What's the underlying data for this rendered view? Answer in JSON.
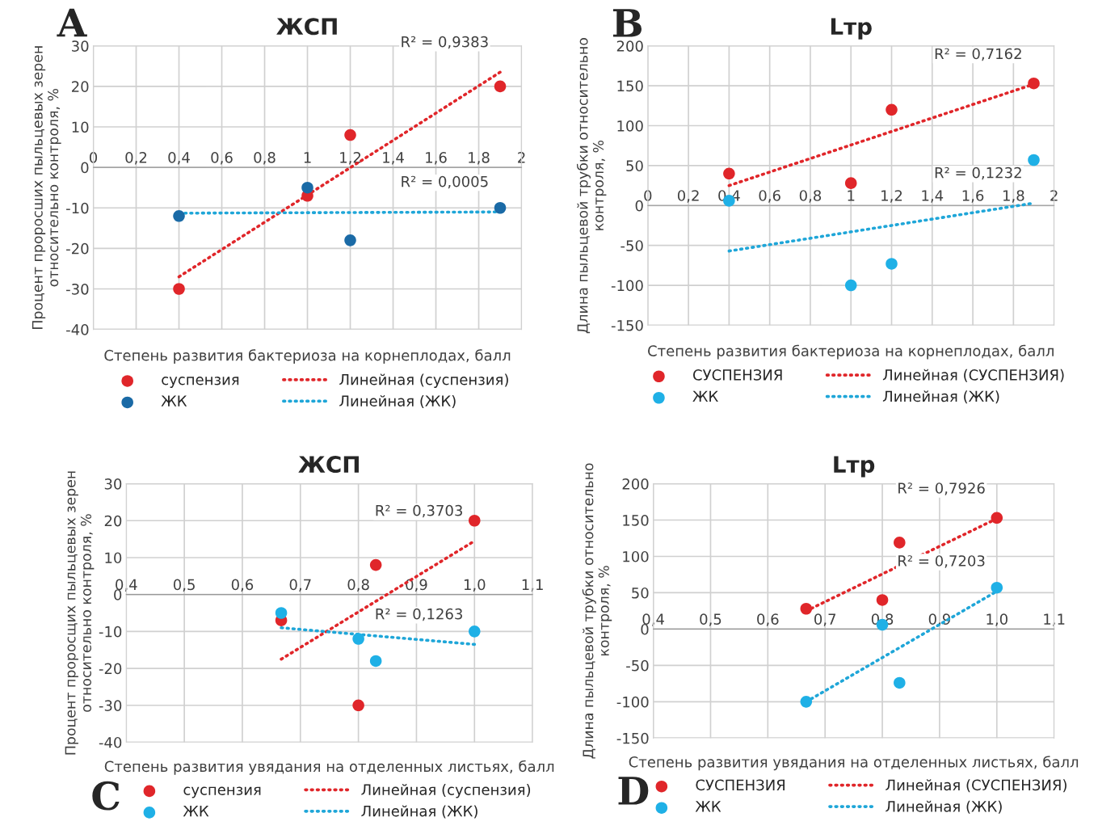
{
  "chart_data": [
    {
      "type": "scatter",
      "title": "ЖСП",
      "xlabel": "Степень развития бактериоза на корнеплодах, балл",
      "ylabel": "Процент проросших пыльцевых зерен\nотносительно контроля, %",
      "xlim": [
        0,
        2
      ],
      "xticks": [
        0,
        {
          "value": 0.2,
          "label": "0,2"
        },
        {
          "value": 0.4,
          "label": "0,4"
        },
        {
          "value": 0.6,
          "label": "0,6"
        },
        {
          "value": 0.8,
          "label": "0,8"
        },
        1,
        {
          "value": 1.2,
          "label": "1,2"
        },
        {
          "value": 1.4,
          "label": "1,4"
        },
        {
          "value": 1.6,
          "label": "1,6"
        },
        {
          "value": 1.8,
          "label": "1,8"
        },
        2
      ],
      "ylim": [
        -40,
        30
      ],
      "yticks": [
        -40,
        -30,
        -20,
        -10,
        0,
        10,
        20,
        30
      ],
      "grid": true,
      "legend": "bottom",
      "series": [
        {
          "name": "суспензия",
          "color": "#e0262a",
          "marker": "circle",
          "x": [
            0.4,
            1.0,
            1.2,
            1.9
          ],
          "values": [
            -30,
            -7,
            8,
            20
          ]
        },
        {
          "name": "ЖК",
          "color": "#1a6aa6",
          "marker": "circle",
          "x": [
            0.4,
            1.0,
            1.2,
            1.9
          ],
          "values": [
            -12,
            -5,
            -18,
            -10
          ]
        },
        {
          "name": "Линейная (суспензия)",
          "type": "line",
          "line_style": "dotted",
          "color": "#e0262a",
          "x": [
            0.4,
            1.9
          ],
          "values": [
            -27,
            23.5
          ]
        },
        {
          "name": "Линейная (ЖК)",
          "type": "line",
          "line_style": "dotted",
          "color": "#1fa6d8",
          "x": [
            0.4,
            1.9
          ],
          "values": [
            -11.3,
            -11
          ]
        }
      ],
      "annotations": [
        "A",
        "R² = 0,9383",
        "R² = 0,0005"
      ]
    },
    {
      "type": "scatter",
      "title": "Lтр",
      "xlabel": "Степень развития бактериоза на корнеплодах, балл",
      "ylabel": "Длина пыльцевой трубки относительно\nконтроля, %",
      "xlim": [
        0,
        2
      ],
      "xticks": [
        0,
        {
          "value": 0.2,
          "label": "0,2"
        },
        {
          "value": 0.4,
          "label": "0,4"
        },
        {
          "value": 0.6,
          "label": "0,6"
        },
        {
          "value": 0.8,
          "label": "0,8"
        },
        1,
        {
          "value": 1.2,
          "label": "1,2"
        },
        {
          "value": 1.4,
          "label": "1,4"
        },
        {
          "value": 1.6,
          "label": "1,6"
        },
        {
          "value": 1.8,
          "label": "1,8"
        },
        2
      ],
      "ylim": [
        -150,
        200
      ],
      "yticks": [
        -150,
        -100,
        -50,
        0,
        50,
        100,
        150,
        200
      ],
      "grid": true,
      "legend": "bottom",
      "series": [
        {
          "name": "СУСПЕНЗИЯ",
          "color": "#e0262a",
          "marker": "circle",
          "x": [
            0.4,
            1.0,
            1.2,
            1.9
          ],
          "values": [
            40,
            28,
            120,
            153
          ]
        },
        {
          "name": "ЖК",
          "color": "#1fb0e6",
          "marker": "circle",
          "x": [
            0.4,
            1.0,
            1.2,
            1.9
          ],
          "values": [
            6,
            -100,
            -73,
            57
          ]
        },
        {
          "name": "Линейная (СУСПЕНЗИЯ)",
          "type": "line",
          "line_style": "dotted",
          "color": "#e0262a",
          "x": [
            0.4,
            1.9
          ],
          "values": [
            25,
            152
          ]
        },
        {
          "name": "Линейная (ЖК)",
          "type": "line",
          "line_style": "dotted",
          "color": "#1fa6d8",
          "x": [
            0.4,
            1.9
          ],
          "values": [
            -57,
            3
          ]
        }
      ],
      "annotations": [
        "B",
        "R² = 0,7162",
        "R² = 0,1232"
      ]
    },
    {
      "type": "scatter",
      "title": "ЖСП",
      "xlabel": "Степень развития увядания на отделенных листьях, балл",
      "ylabel": "Процент пророcщих пыльцевых зерен\nотносительно контроля, %",
      "xlim": [
        0.4,
        1.1
      ],
      "xticks": [
        {
          "value": 0.4,
          "label": "0,4"
        },
        {
          "value": 0.5,
          "label": "0,5"
        },
        {
          "value": 0.6,
          "label": "0,6"
        },
        {
          "value": 0.7,
          "label": "0,7"
        },
        {
          "value": 0.8,
          "label": "0,8"
        },
        {
          "value": 0.9,
          "label": "0,9"
        },
        {
          "value": 1.0,
          "label": "1,0"
        },
        {
          "value": 1.1,
          "label": "1,1"
        }
      ],
      "ylim": [
        -40,
        30
      ],
      "yticks": [
        -40,
        -30,
        -20,
        -10,
        0,
        10,
        20,
        30
      ],
      "grid": true,
      "legend": "bottom",
      "series": [
        {
          "name": "суспензия",
          "color": "#e0262a",
          "marker": "circle",
          "x": [
            0.667,
            0.8,
            0.83,
            1.0
          ],
          "values": [
            -7,
            -30,
            8,
            20
          ]
        },
        {
          "name": "ЖК",
          "color": "#1fb0e6",
          "marker": "circle",
          "x": [
            0.667,
            0.8,
            0.83,
            1.0
          ],
          "values": [
            -5,
            -12,
            -18,
            -10
          ]
        },
        {
          "name": "Линейная (суспензия)",
          "type": "line",
          "line_style": "dotted",
          "color": "#e0262a",
          "x": [
            0.667,
            1.0
          ],
          "values": [
            -17.5,
            14.5
          ]
        },
        {
          "name": "Линейная (ЖК)",
          "type": "line",
          "line_style": "dotted",
          "color": "#1fa6d8",
          "x": [
            0.667,
            1.0
          ],
          "values": [
            -9,
            -13.5
          ]
        }
      ],
      "annotations": [
        "C",
        "R² = 0,3703",
        "R² = 0,1263"
      ]
    },
    {
      "type": "scatter",
      "title": "Lтр",
      "xlabel": "Степень развития увядания на отделенных листьях, балл",
      "ylabel": "Длина пыльцевой трубки относительно\nконтроля, %",
      "xlim": [
        0.4,
        1.1
      ],
      "xticks": [
        {
          "value": 0.4,
          "label": "0,4"
        },
        {
          "value": 0.5,
          "label": "0,5"
        },
        {
          "value": 0.6,
          "label": "0,6"
        },
        {
          "value": 0.7,
          "label": "0,7"
        },
        {
          "value": 0.8,
          "label": "0,8"
        },
        {
          "value": 0.9,
          "label": "0,9"
        },
        {
          "value": 1.0,
          "label": "1,0"
        },
        {
          "value": 1.1,
          "label": "1,1"
        }
      ],
      "ylim": [
        -150,
        200
      ],
      "yticks": [
        -150,
        -100,
        -50,
        0,
        50,
        100,
        150,
        200
      ],
      "grid": true,
      "legend": "bottom",
      "series": [
        {
          "name": "СУСПЕНЗИЯ",
          "color": "#e0262a",
          "marker": "circle",
          "x": [
            0.667,
            0.8,
            0.83,
            1.0
          ],
          "values": [
            28,
            40,
            119,
            153
          ]
        },
        {
          "name": "ЖК",
          "color": "#1fb0e6",
          "marker": "circle",
          "x": [
            0.667,
            0.8,
            0.83,
            1.0
          ],
          "values": [
            -100,
            6,
            -74,
            57
          ]
        },
        {
          "name": "Линейная (СУСПЕНЗИЯ)",
          "type": "line",
          "line_style": "dotted",
          "color": "#e0262a",
          "x": [
            0.667,
            1.0
          ],
          "values": [
            25,
            152
          ]
        },
        {
          "name": "Линейная (ЖК)",
          "type": "line",
          "line_style": "dotted",
          "color": "#1fa6d8",
          "x": [
            0.667,
            1.0
          ],
          "values": [
            -100,
            52
          ]
        }
      ],
      "annotations": [
        "D",
        "R² = 0,7926",
        "R² = 0,7203"
      ]
    }
  ]
}
